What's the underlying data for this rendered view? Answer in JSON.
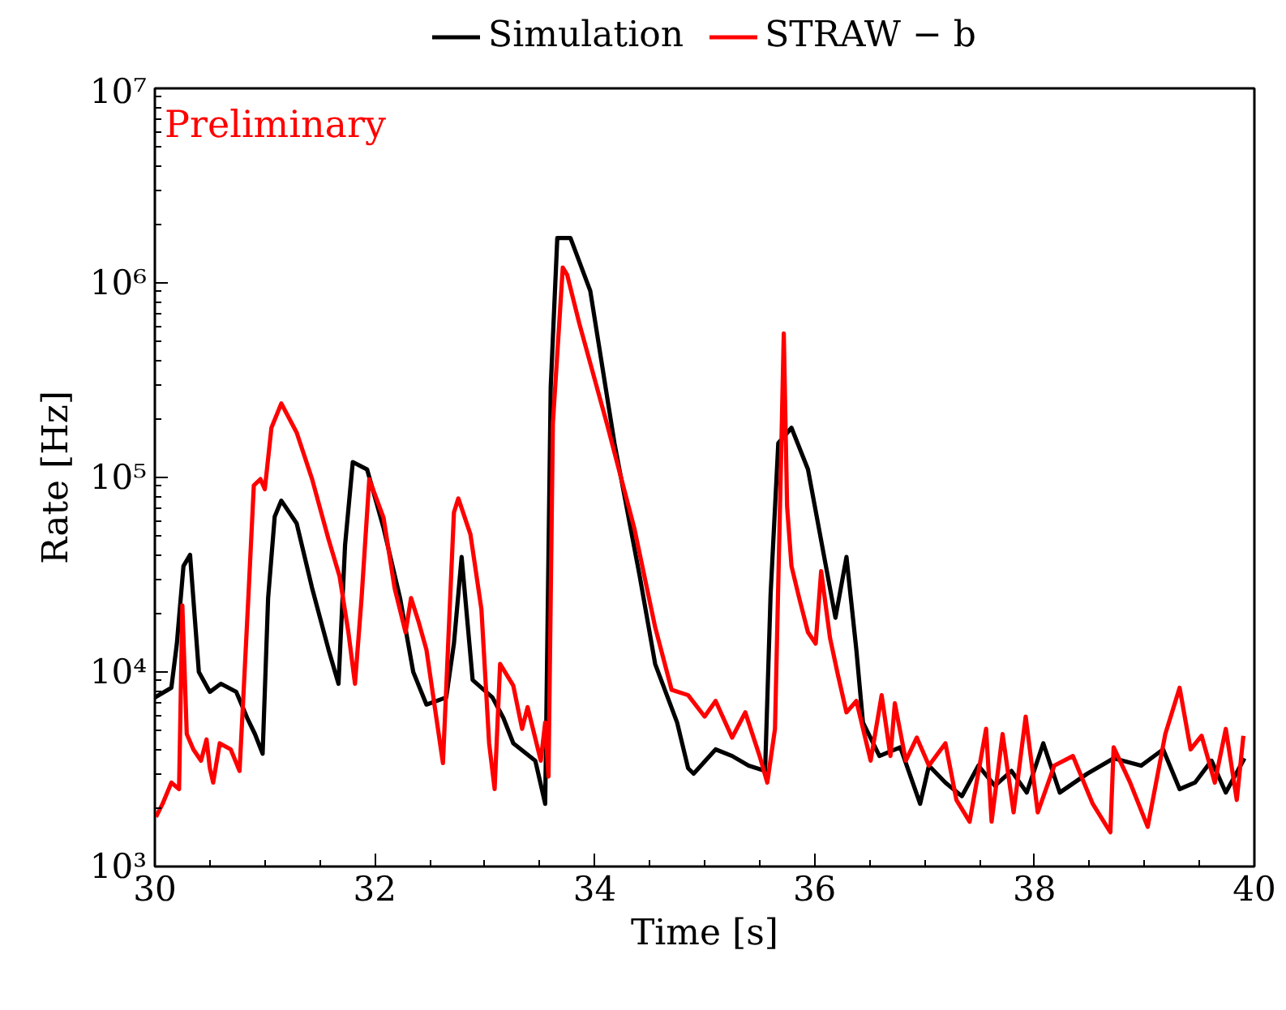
{
  "chart_data": {
    "type": "line",
    "xlabel": "Time [s]",
    "ylabel": "Rate [Hz]",
    "log": "y",
    "xlim": [
      30,
      40
    ],
    "xticks": [
      30,
      32,
      34,
      36,
      38,
      40
    ],
    "ylim": [
      1000,
      10000000
    ],
    "yticks": [
      {
        "value": 1000,
        "label": "10³"
      },
      {
        "value": 10000,
        "label": "10⁴"
      },
      {
        "value": 100000,
        "label": "10⁵"
      },
      {
        "value": 1000000,
        "label": "10⁶"
      },
      {
        "value": 10000000,
        "label": "10⁷"
      }
    ],
    "grid": false,
    "legend": "top",
    "line_style": "solid",
    "marker": "none",
    "annotations": [
      "Preliminary"
    ],
    "series": [
      {
        "name": "Simulation",
        "color": "#000000",
        "x": [
          30.0,
          30.15,
          30.2,
          30.26,
          30.32,
          30.4,
          30.5,
          30.6,
          30.74,
          30.84,
          30.91,
          30.98,
          31.03,
          31.09,
          31.15,
          31.29,
          31.43,
          31.58,
          31.67,
          31.73,
          31.8,
          31.93,
          32.08,
          32.23,
          32.35,
          32.47,
          32.65,
          32.72,
          32.79,
          32.89,
          33.07,
          33.17,
          33.26,
          33.46,
          33.55,
          33.6,
          33.66,
          33.78,
          33.96,
          34.18,
          34.41,
          34.55,
          34.75,
          34.85,
          34.9,
          35.1,
          35.25,
          35.4,
          35.55,
          35.6,
          35.67,
          35.79,
          35.94,
          36.19,
          36.29,
          36.38,
          36.44,
          36.59,
          36.78,
          36.96,
          37.04,
          37.19,
          37.34,
          37.49,
          37.64,
          37.79,
          37.93,
          38.08,
          38.23,
          38.48,
          38.72,
          38.97,
          39.17,
          39.32,
          39.46,
          39.61,
          39.74,
          39.91
        ],
        "values": [
          7400,
          8300,
          14000,
          35000,
          40000,
          10000,
          7900,
          8700,
          7900,
          5800,
          4800,
          3800,
          24000,
          63000,
          76000,
          58000,
          27000,
          13000,
          8700,
          45000,
          120000,
          110000,
          55000,
          24000,
          10000,
          6800,
          7400,
          14000,
          39000,
          9100,
          7400,
          5800,
          4300,
          3500,
          2100,
          290000,
          1700000,
          1700000,
          910000,
          150000,
          31000,
          11000,
          5500,
          3200,
          3000,
          4000,
          3700,
          3300,
          3100,
          25000,
          150000,
          180000,
          110000,
          19000,
          39000,
          13000,
          5500,
          3700,
          4100,
          2100,
          3300,
          2700,
          2300,
          3300,
          2600,
          3100,
          2400,
          4300,
          2400,
          3000,
          3600,
          3300,
          4000,
          2500,
          2700,
          3500,
          2400,
          3600
        ]
      },
      {
        "name": "STRAW − b",
        "color": "#ff0000",
        "x": [
          30.01,
          30.07,
          30.15,
          30.22,
          30.25,
          30.29,
          30.35,
          30.42,
          30.47,
          30.5,
          30.53,
          30.59,
          30.69,
          30.77,
          30.8,
          30.85,
          30.9,
          30.96,
          31.0,
          31.06,
          31.15,
          31.29,
          31.43,
          31.58,
          31.68,
          31.76,
          31.82,
          31.88,
          31.95,
          32.08,
          32.18,
          32.28,
          32.33,
          32.4,
          32.47,
          32.62,
          32.72,
          32.76,
          32.87,
          32.97,
          33.04,
          33.09,
          33.14,
          33.26,
          33.34,
          33.39,
          33.51,
          33.55,
          33.58,
          33.62,
          33.71,
          33.75,
          33.86,
          34.11,
          34.36,
          34.55,
          34.7,
          34.85,
          35.0,
          35.1,
          35.25,
          35.37,
          35.5,
          35.57,
          35.64,
          35.69,
          35.72,
          35.75,
          35.79,
          35.86,
          35.94,
          36.01,
          36.06,
          36.14,
          36.21,
          36.29,
          36.38,
          36.51,
          36.61,
          36.69,
          36.73,
          36.83,
          36.93,
          37.04,
          37.19,
          37.29,
          37.41,
          37.56,
          37.61,
          37.71,
          37.81,
          37.92,
          38.03,
          38.18,
          38.35,
          38.53,
          38.69,
          38.72,
          38.87,
          39.03,
          39.19,
          39.32,
          39.42,
          39.52,
          39.64,
          39.74,
          39.84,
          39.9
        ],
        "values": [
          1800,
          2100,
          2700,
          2500,
          22000,
          4800,
          4000,
          3500,
          4500,
          3200,
          2700,
          4300,
          4000,
          3100,
          6600,
          24000,
          91000,
          98000,
          87000,
          180000,
          240000,
          170000,
          98000,
          48000,
          31000,
          16000,
          8700,
          24000,
          98000,
          62000,
          27000,
          16000,
          24000,
          18000,
          13000,
          3400,
          66000,
          78000,
          51000,
          21000,
          4300,
          2500,
          11000,
          8500,
          5100,
          6600,
          3500,
          5500,
          2900,
          190000,
          1200000,
          1100000,
          620000,
          190000,
          55000,
          17000,
          8100,
          7600,
          5900,
          7100,
          4600,
          6200,
          3700,
          2700,
          5100,
          91000,
          550000,
          71000,
          35000,
          24000,
          16000,
          14000,
          33000,
          15000,
          9800,
          6200,
          7100,
          3500,
          7600,
          3700,
          6900,
          3500,
          4600,
          3300,
          4300,
          2200,
          1700,
          5100,
          1700,
          4800,
          1900,
          5900,
          1900,
          3300,
          3700,
          2100,
          1500,
          4100,
          2700,
          1600,
          4800,
          8300,
          4000,
          4700,
          2700,
          5100,
          2200,
          4700
        ]
      }
    ]
  }
}
